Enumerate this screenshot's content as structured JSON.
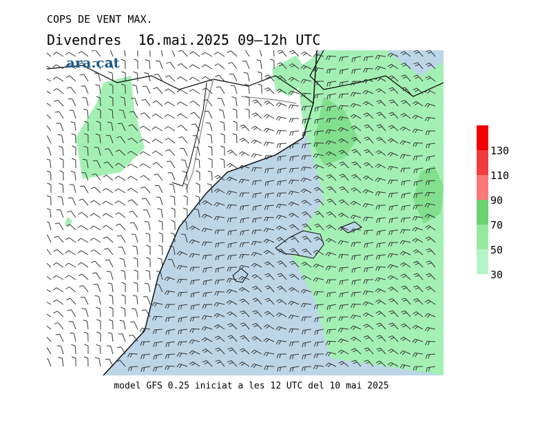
{
  "header": {
    "title": "COPS DE VENT MAX.",
    "subtitle": "Divendres  16.mai.2025 09–12h UTC",
    "logo": "ara.cat"
  },
  "legend": {
    "ticks": [
      30,
      50,
      70,
      90,
      110,
      130
    ],
    "colors": [
      "#b4f5c8",
      "#96e8a0",
      "#6cd272",
      "#fa7878",
      "#f03c3c",
      "#f00000"
    ]
  },
  "footer": "model GFS 0.25 iniciat a les 12 UTC del 10 mai 2025"
}
